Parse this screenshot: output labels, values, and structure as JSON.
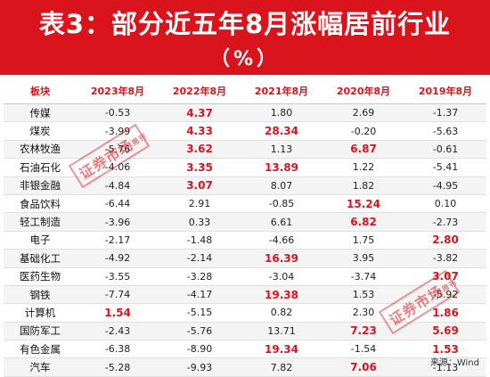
{
  "title": "表3：部分近五年8月涨幅居前行业",
  "unit": "（%）",
  "table": {
    "headers": [
      "板块",
      "2023年8月",
      "2022年8月",
      "2021年8月",
      "2020年8月",
      "2019年8月"
    ],
    "rows": [
      {
        "name": "传媒",
        "values": [
          "-0.53",
          "4.37",
          "1.80",
          "2.69",
          "-1.37"
        ],
        "highlight": [
          false,
          true,
          false,
          false,
          false
        ]
      },
      {
        "name": "煤炭",
        "values": [
          "-3.99",
          "4.33",
          "28.34",
          "-0.20",
          "-5.63"
        ],
        "highlight": [
          false,
          true,
          true,
          false,
          false
        ]
      },
      {
        "name": "农林牧渔",
        "values": [
          "-5.76",
          "3.62",
          "1.13",
          "6.87",
          "-0.61"
        ],
        "highlight": [
          false,
          true,
          false,
          true,
          false
        ]
      },
      {
        "name": "石油石化",
        "values": [
          "-4.06",
          "3.35",
          "13.89",
          "1.22",
          "-5.41"
        ],
        "highlight": [
          false,
          true,
          true,
          false,
          false
        ]
      },
      {
        "name": "非银金融",
        "values": [
          "-4.84",
          "3.07",
          "8.07",
          "1.82",
          "-4.95"
        ],
        "highlight": [
          false,
          true,
          false,
          false,
          false
        ]
      },
      {
        "name": "食品饮料",
        "values": [
          "-6.44",
          "2.91",
          "-0.85",
          "15.24",
          "0.10"
        ],
        "highlight": [
          false,
          false,
          false,
          true,
          false
        ]
      },
      {
        "name": "轻工制造",
        "values": [
          "-3.96",
          "0.33",
          "6.61",
          "6.82",
          "-2.73"
        ],
        "highlight": [
          false,
          false,
          false,
          true,
          false
        ]
      },
      {
        "name": "电子",
        "values": [
          "-2.17",
          "-1.48",
          "-4.66",
          "1.75",
          "2.80"
        ],
        "highlight": [
          false,
          false,
          false,
          false,
          true
        ]
      },
      {
        "name": "基础化工",
        "values": [
          "-4.92",
          "-2.14",
          "16.39",
          "3.95",
          "-3.82"
        ],
        "highlight": [
          false,
          false,
          true,
          false,
          false
        ]
      },
      {
        "name": "医药生物",
        "values": [
          "-3.55",
          "-3.28",
          "-3.04",
          "-3.74",
          "3.07"
        ],
        "highlight": [
          false,
          false,
          false,
          false,
          true
        ]
      },
      {
        "name": "钢铁",
        "values": [
          "-7.74",
          "-4.17",
          "19.38",
          "1.53",
          "-5.92"
        ],
        "highlight": [
          false,
          false,
          true,
          false,
          false
        ]
      },
      {
        "name": "计算机",
        "values": [
          "1.54",
          "-5.15",
          "0.82",
          "2.30",
          "1.86"
        ],
        "highlight": [
          true,
          false,
          false,
          false,
          true
        ]
      },
      {
        "name": "国防军工",
        "values": [
          "-2.43",
          "-5.76",
          "13.71",
          "7.23",
          "5.69"
        ],
        "highlight": [
          false,
          false,
          false,
          true,
          true
        ]
      },
      {
        "name": "有色金属",
        "values": [
          "-6.38",
          "-8.90",
          "19.34",
          "-1.54",
          "1.53"
        ],
        "highlight": [
          false,
          false,
          true,
          false,
          true
        ]
      },
      {
        "name": "汽车",
        "values": [
          "-5.28",
          "-9.93",
          "7.82",
          "7.06",
          "-1.13"
        ],
        "highlight": [
          false,
          false,
          false,
          true,
          false
        ]
      }
    ]
  },
  "source": "来源：Wind",
  "stamps": [
    {
      "main": "证券市场",
      "small": "周刊"
    },
    {
      "main": "证券市场",
      "small": "周刊"
    }
  ],
  "colors": {
    "accent": "#d9141c",
    "text": "#222222",
    "stripe": "#f4f4f4"
  }
}
